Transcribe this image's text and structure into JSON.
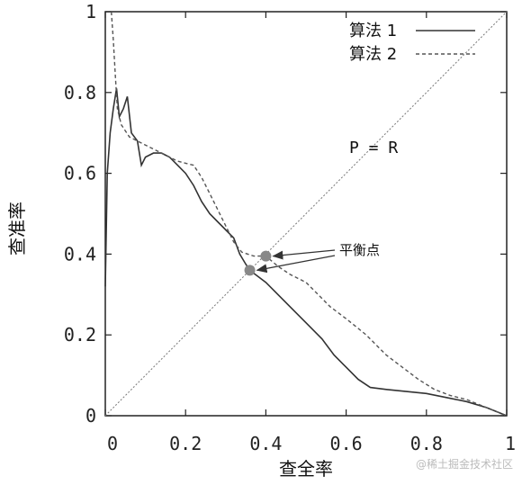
{
  "watermark": "@稀土掘金技术社区",
  "chart_data": {
    "type": "line",
    "title": "",
    "xlabel": "查全率",
    "ylabel": "查准率",
    "xlim": [
      0,
      1
    ],
    "ylim": [
      0,
      1
    ],
    "x_ticks": [
      "0",
      "0.2",
      "0.4",
      "0.6",
      "0.8",
      "1"
    ],
    "y_ticks": [
      "0",
      "0.2",
      "0.4",
      "0.6",
      "0.8",
      "1"
    ],
    "legend_position": "top-right",
    "grid": false,
    "series": [
      {
        "name": "算法 1",
        "style": "solid",
        "color": "#333333",
        "points": [
          [
            0.0,
            0.32
          ],
          [
            0.005,
            0.6
          ],
          [
            0.012,
            0.7
          ],
          [
            0.02,
            0.76
          ],
          [
            0.028,
            0.81
          ],
          [
            0.035,
            0.74
          ],
          [
            0.045,
            0.76
          ],
          [
            0.055,
            0.79
          ],
          [
            0.065,
            0.7
          ],
          [
            0.08,
            0.68
          ],
          [
            0.09,
            0.62
          ],
          [
            0.1,
            0.64
          ],
          [
            0.12,
            0.65
          ],
          [
            0.14,
            0.65
          ],
          [
            0.16,
            0.64
          ],
          [
            0.18,
            0.62
          ],
          [
            0.2,
            0.6
          ],
          [
            0.22,
            0.57
          ],
          [
            0.24,
            0.53
          ],
          [
            0.26,
            0.5
          ],
          [
            0.28,
            0.48
          ],
          [
            0.3,
            0.46
          ],
          [
            0.32,
            0.44
          ],
          [
            0.335,
            0.4
          ],
          [
            0.35,
            0.375
          ],
          [
            0.36,
            0.36
          ],
          [
            0.38,
            0.345
          ],
          [
            0.4,
            0.33
          ],
          [
            0.43,
            0.3
          ],
          [
            0.46,
            0.27
          ],
          [
            0.5,
            0.23
          ],
          [
            0.54,
            0.19
          ],
          [
            0.57,
            0.15
          ],
          [
            0.6,
            0.12
          ],
          [
            0.63,
            0.09
          ],
          [
            0.66,
            0.07
          ],
          [
            0.7,
            0.065
          ],
          [
            0.75,
            0.06
          ],
          [
            0.8,
            0.055
          ],
          [
            0.85,
            0.045
          ],
          [
            0.9,
            0.035
          ],
          [
            0.95,
            0.02
          ],
          [
            1.0,
            0.0
          ]
        ]
      },
      {
        "name": "算法 2",
        "style": "dashed",
        "color": "#555555",
        "points": [
          [
            0.015,
            1.0
          ],
          [
            0.02,
            0.93
          ],
          [
            0.025,
            0.84
          ],
          [
            0.03,
            0.76
          ],
          [
            0.04,
            0.72
          ],
          [
            0.06,
            0.69
          ],
          [
            0.08,
            0.68
          ],
          [
            0.1,
            0.67
          ],
          [
            0.12,
            0.66
          ],
          [
            0.14,
            0.65
          ],
          [
            0.16,
            0.64
          ],
          [
            0.18,
            0.63
          ],
          [
            0.2,
            0.625
          ],
          [
            0.22,
            0.62
          ],
          [
            0.24,
            0.59
          ],
          [
            0.26,
            0.55
          ],
          [
            0.28,
            0.51
          ],
          [
            0.3,
            0.47
          ],
          [
            0.32,
            0.43
          ],
          [
            0.34,
            0.405
          ],
          [
            0.37,
            0.395
          ],
          [
            0.4,
            0.395
          ],
          [
            0.43,
            0.37
          ],
          [
            0.46,
            0.35
          ],
          [
            0.5,
            0.33
          ],
          [
            0.53,
            0.3
          ],
          [
            0.56,
            0.27
          ],
          [
            0.6,
            0.24
          ],
          [
            0.65,
            0.2
          ],
          [
            0.7,
            0.15
          ],
          [
            0.74,
            0.12
          ],
          [
            0.78,
            0.09
          ],
          [
            0.82,
            0.065
          ],
          [
            0.86,
            0.05
          ],
          [
            0.9,
            0.04
          ],
          [
            0.95,
            0.02
          ],
          [
            1.0,
            0.0
          ]
        ]
      }
    ],
    "reference_line": {
      "label": "P = R",
      "points": [
        [
          0,
          0
        ],
        [
          1,
          1
        ]
      ]
    },
    "annotation": {
      "label": "平衡点",
      "points": [
        [
          0.4,
          0.395
        ],
        [
          0.36,
          0.36
        ]
      ]
    }
  }
}
